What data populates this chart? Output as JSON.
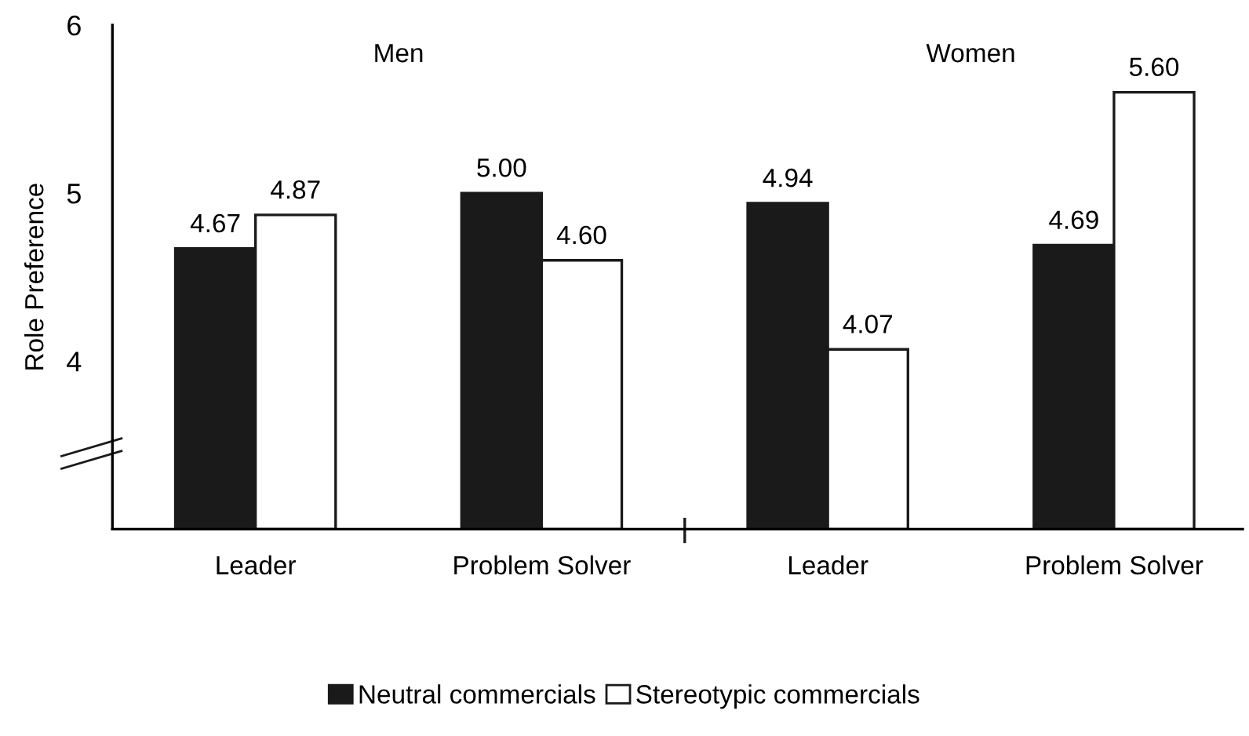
{
  "chart_data": {
    "type": "bar",
    "ylabel": "Role Preference",
    "categories": [
      "Leader",
      "Problem Solver",
      "Leader",
      "Problem Solver"
    ],
    "series": [
      {
        "name": "Neutral commercials",
        "color": "#1a1a1a",
        "values": [
          4.67,
          5.0,
          4.94,
          4.69
        ]
      },
      {
        "name": "Stereotypic commercials",
        "color": "#ffffff",
        "values": [
          4.87,
          4.6,
          4.07,
          5.6
        ]
      }
    ],
    "ylim": [
      3,
      6
    ],
    "yticks": [
      {
        "value": 4,
        "label": "4"
      },
      {
        "value": 5,
        "label": "5"
      },
      {
        "value": 6,
        "label": "6"
      }
    ],
    "value_labels": [
      [
        "4.67",
        "5.00",
        "4.94",
        "4.69"
      ],
      [
        "4.87",
        "4.60",
        "4.07",
        "5.60"
      ]
    ],
    "annotations": [
      "Men",
      "Women"
    ],
    "grid": false,
    "legend": "bottom"
  }
}
